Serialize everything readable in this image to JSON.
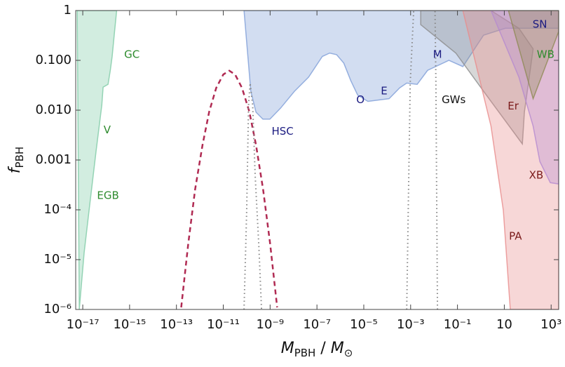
{
  "chart_data": {
    "type": "line",
    "xscale": "log",
    "yscale": "log",
    "xlim": [
      5e-18,
      2100
    ],
    "ylim": [
      1e-06,
      1
    ],
    "xticks": [
      {
        "value": 1e-17,
        "label": "10⁻¹⁷"
      },
      {
        "value": 1e-15,
        "label": "10⁻¹⁵"
      },
      {
        "value": 1e-13,
        "label": "10⁻¹³"
      },
      {
        "value": 1e-11,
        "label": "10⁻¹¹"
      },
      {
        "value": 1e-09,
        "label": "10⁻⁹"
      },
      {
        "value": 1e-07,
        "label": "10⁻⁷"
      },
      {
        "value": 1e-05,
        "label": "10⁻⁵"
      },
      {
        "value": 0.001,
        "label": "10⁻³"
      },
      {
        "value": 0.1,
        "label": "10⁻¹"
      },
      10,
      {
        "value": 1000,
        "label": "10³"
      }
    ],
    "yticks": [
      {
        "value": 1e-06,
        "label": "10⁻⁶"
      },
      {
        "value": 1e-05,
        "label": "10⁻⁵"
      },
      {
        "value": 0.0001,
        "label": "10⁻⁴"
      },
      {
        "value": 0.001,
        "label": "0.001"
      },
      {
        "value": 0.01,
        "label": "0.010"
      },
      {
        "value": 0.1,
        "label": "0.100"
      },
      1
    ],
    "xlabel": [
      {
        "text": "M",
        "sub": "PBH"
      },
      {
        "text": " / "
      },
      {
        "text": "M",
        "sub": "⊙"
      }
    ],
    "ylabel": [
      {
        "text": "f",
        "sub": "PBH"
      }
    ],
    "series": [
      {
        "style": "fill",
        "color": "#7fcaa6",
        "x": [
          7.1e-18,
          1.15e-17,
          2e-17,
          3.7e-17,
          6.5e-17,
          7.4e-17,
          1.2e-16,
          1.5e-16,
          1.8e-16,
          2.2e-16,
          2.8e-16,
          5.8e-18
        ],
        "values": [
          1e-06,
          1.4e-05,
          0.00013,
          0.0015,
          0.0126,
          0.029,
          0.033,
          0.063,
          0.12,
          0.32,
          1,
          1
        ]
      },
      {
        "style": "fill",
        "color": "#7f9fd8",
        "x": [
          7.7e-11,
          1e-10,
          1.5e-10,
          2.5e-10,
          4.9e-10,
          9.8e-10,
          2.8e-09,
          1.1e-08,
          4.4e-08,
          1.7e-07,
          3.5e-07,
          6.9e-07,
          1.4e-06,
          2.8e-06,
          5.5e-06,
          1.5e-05,
          4.3e-05,
          0.00012,
          0.00034,
          0.00068,
          0.0019,
          0.0053,
          0.043,
          0.17,
          1.3,
          11,
          170,
          2100,
          2100
        ],
        "values": [
          1,
          0.23,
          0.024,
          0.0091,
          0.0066,
          0.0066,
          0.011,
          0.024,
          0.046,
          0.12,
          0.14,
          0.13,
          0.088,
          0.039,
          0.02,
          0.015,
          0.016,
          0.017,
          0.028,
          0.035,
          0.033,
          0.063,
          0.1,
          0.075,
          0.32,
          0.44,
          0.44,
          0.44,
          1
        ]
      },
      {
        "style": "fill",
        "color": "#8c8c8c",
        "x": [
          0.0027,
          0.0027,
          0.085,
          1.3,
          59,
          72,
          170,
          42,
          2.7
        ],
        "values": [
          1,
          0.52,
          0.14,
          0.024,
          0.0021,
          0.0091,
          0.17,
          0.44,
          1
        ]
      },
      {
        "style": "fill",
        "color": "#e88c8c",
        "x": [
          0.17,
          2.7,
          9.1,
          18,
          2100,
          2100
        ],
        "values": [
          1,
          0.0048,
          9.7e-05,
          1e-06,
          1e-06,
          1
        ]
      },
      {
        "style": "fill",
        "color": "#b58ad0",
        "x": [
          2.7,
          42,
          170,
          330,
          920,
          2100,
          2100
        ],
        "values": [
          1,
          0.046,
          0.0048,
          0.00093,
          0.00035,
          0.00033,
          1
        ]
      },
      {
        "style": "fill",
        "color": "#8f8a55",
        "x": [
          15,
          170,
          2100,
          2100
        ],
        "values": [
          1,
          0.017,
          0.38,
          1
        ]
      },
      {
        "style": "dashed",
        "color": "#b02a52",
        "x": [
          1.6e-13,
          3.2e-13,
          6.3e-13,
          1.3e-12,
          2.5e-12,
          5e-12,
          1e-11,
          1.8e-11,
          3.2e-11,
          6.3e-11,
          1.3e-10,
          2.5e-10,
          5e-10,
          1e-09,
          2e-09
        ],
        "values": [
          1.1e-06,
          2.1e-05,
          0.00026,
          0.002,
          0.0093,
          0.028,
          0.052,
          0.062,
          0.052,
          0.028,
          0.0093,
          0.002,
          0.00026,
          2.1e-05,
          1.1e-06
        ]
      },
      {
        "style": "dotted",
        "color": "#888888",
        "x": [
          7.7e-11,
          1e-10,
          1.2e-10,
          1.4e-10,
          1.8e-10,
          2.3e-10,
          3.3e-10,
          4.3e-10
        ],
        "values": [
          1e-06,
          9.7e-05,
          0.0126,
          0.035,
          0.0126,
          0.00049,
          1.9e-05,
          1e-06
        ]
      },
      {
        "style": "dotted",
        "color": "#888888",
        "x": [
          0.00068,
          0.00096,
          0.00135
        ],
        "values": [
          1e-06,
          0.035,
          1
        ]
      },
      {
        "style": "dotted",
        "color": "#888888",
        "x": [
          0.014,
          0.012,
          0.011
        ],
        "values": [
          1e-06,
          0.035,
          1
        ]
      }
    ],
    "annotations": [
      {
        "text": "GC",
        "x": 1.26e-15,
        "y": 0.13,
        "color": "#2e8b2e"
      },
      {
        "text": "V",
        "x": 1.1e-16,
        "y": 0.004,
        "color": "#2e8b2e"
      },
      {
        "text": "EGB",
        "x": 1.2e-16,
        "y": 0.00019,
        "color": "#2e8b2e"
      },
      {
        "text": "HSC",
        "x": 3.4e-09,
        "y": 0.0037,
        "color": "#1a1a80"
      },
      {
        "text": "O",
        "x": 7.2e-06,
        "y": 0.016,
        "color": "#1a1a80"
      },
      {
        "text": "E",
        "x": 7.4e-05,
        "y": 0.024,
        "color": "#1a1a80"
      },
      {
        "text": "M",
        "x": 0.014,
        "y": 0.13,
        "color": "#1a1a80"
      },
      {
        "text": "GWs",
        "x": 0.069,
        "y": 0.016,
        "color": "#111111"
      },
      {
        "text": "SN",
        "x": 330,
        "y": 0.52,
        "color": "#1a1a80"
      },
      {
        "text": "WB",
        "x": 580,
        "y": 0.13,
        "color": "#2e8b2e"
      },
      {
        "text": "Er",
        "x": 24,
        "y": 0.012,
        "color": "#7a1a1a"
      },
      {
        "text": "XB",
        "x": 230,
        "y": 0.00049,
        "color": "#7a1a1a"
      },
      {
        "text": "PA",
        "x": 30,
        "y": 2.9e-05,
        "color": "#7a1a1a"
      }
    ]
  }
}
